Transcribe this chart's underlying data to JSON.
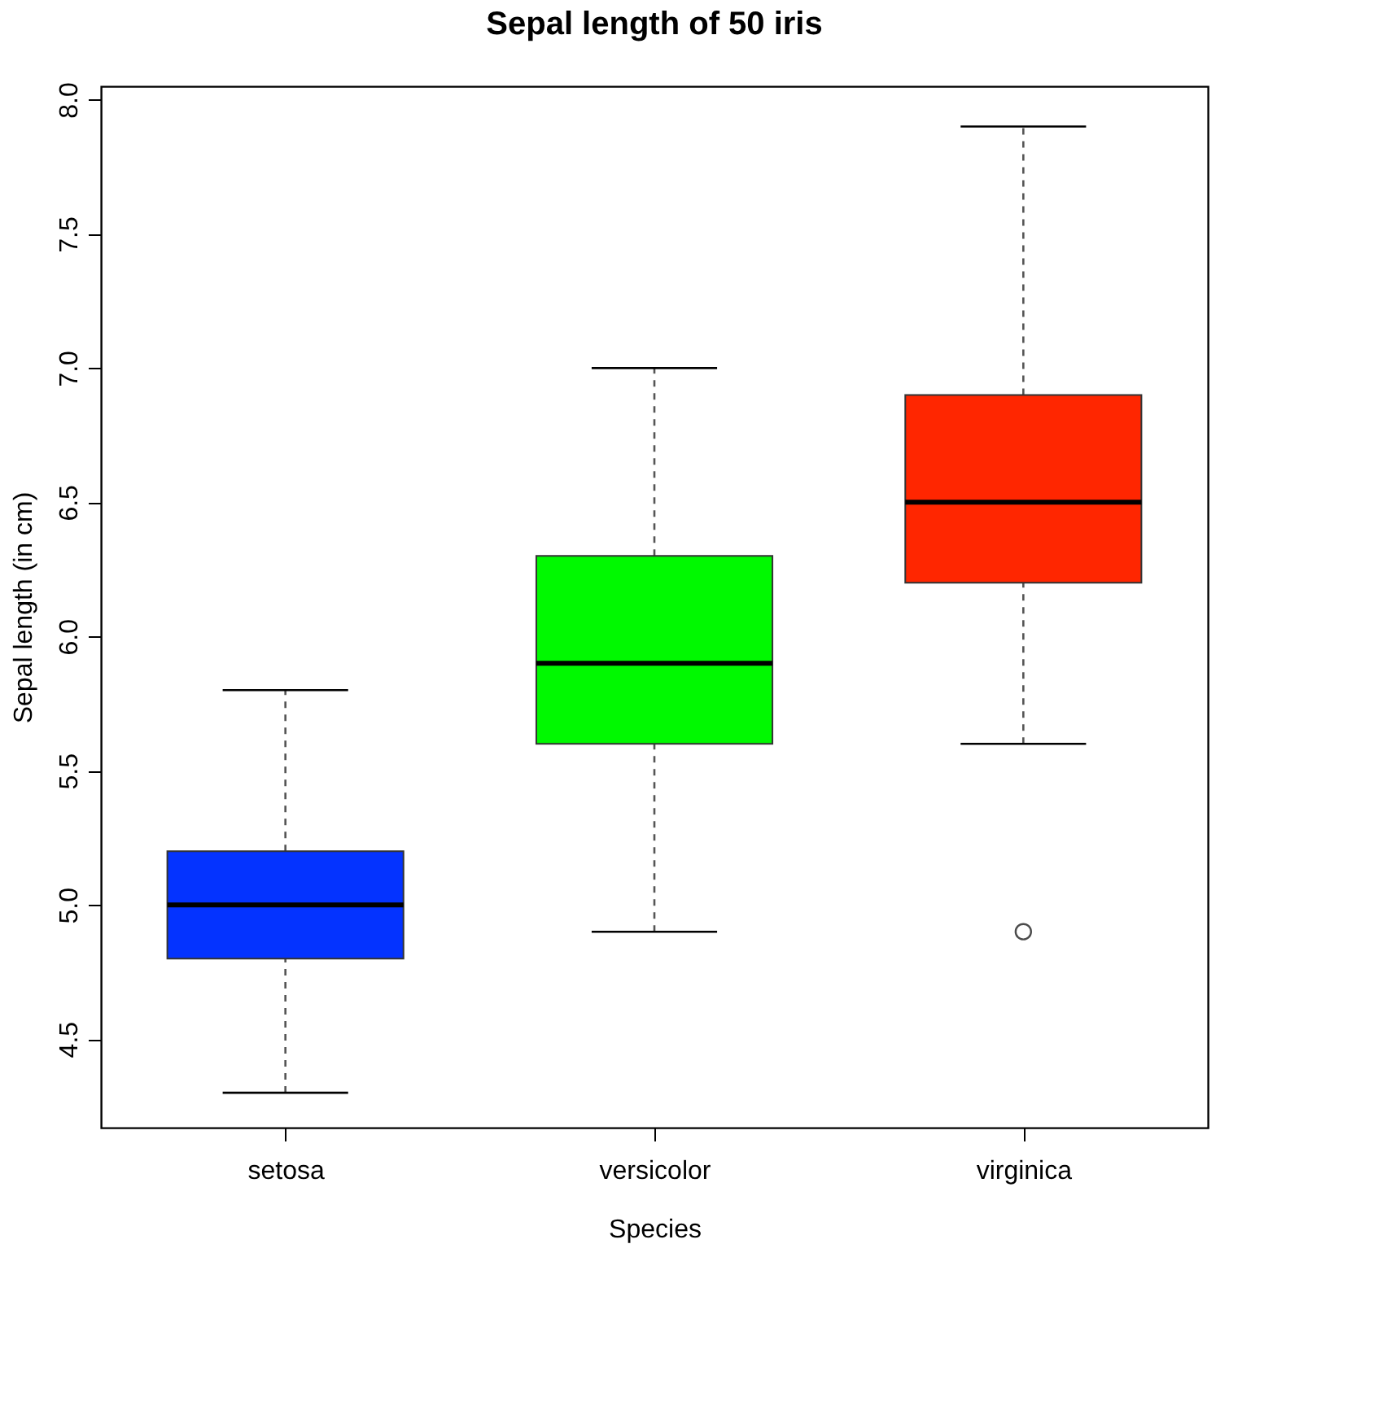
{
  "chart_data": {
    "type": "box",
    "title": "Sepal length of 50 iris",
    "xlabel": "Species",
    "ylabel": "Sepal length (in cm)",
    "categories": [
      "setosa",
      "versicolor",
      "virginica"
    ],
    "colors": [
      "#0433ff",
      "#00f900",
      "#ff2600"
    ],
    "boxes": [
      {
        "low": 4.3,
        "q1": 4.8,
        "median": 5.0,
        "q3": 5.2,
        "high": 5.8
      },
      {
        "low": 4.9,
        "q1": 5.6,
        "median": 5.9,
        "q3": 6.3,
        "high": 7.0
      },
      {
        "low": 5.6,
        "q1": 6.2,
        "median": 6.5,
        "q3": 6.9,
        "high": 7.9,
        "outliers": [
          4.9
        ]
      }
    ],
    "ylim": [
      4.17,
      8.05
    ],
    "yticks": [
      4.5,
      {
        "value": 5.0,
        "label": "5.0"
      },
      5.5,
      {
        "value": 6.0,
        "label": "6.0"
      },
      6.5,
      {
        "value": 7.0,
        "label": "7.0"
      },
      7.5,
      {
        "value": 8.0,
        "label": "8.0"
      }
    ],
    "grid": false,
    "line_style": "dashed"
  }
}
